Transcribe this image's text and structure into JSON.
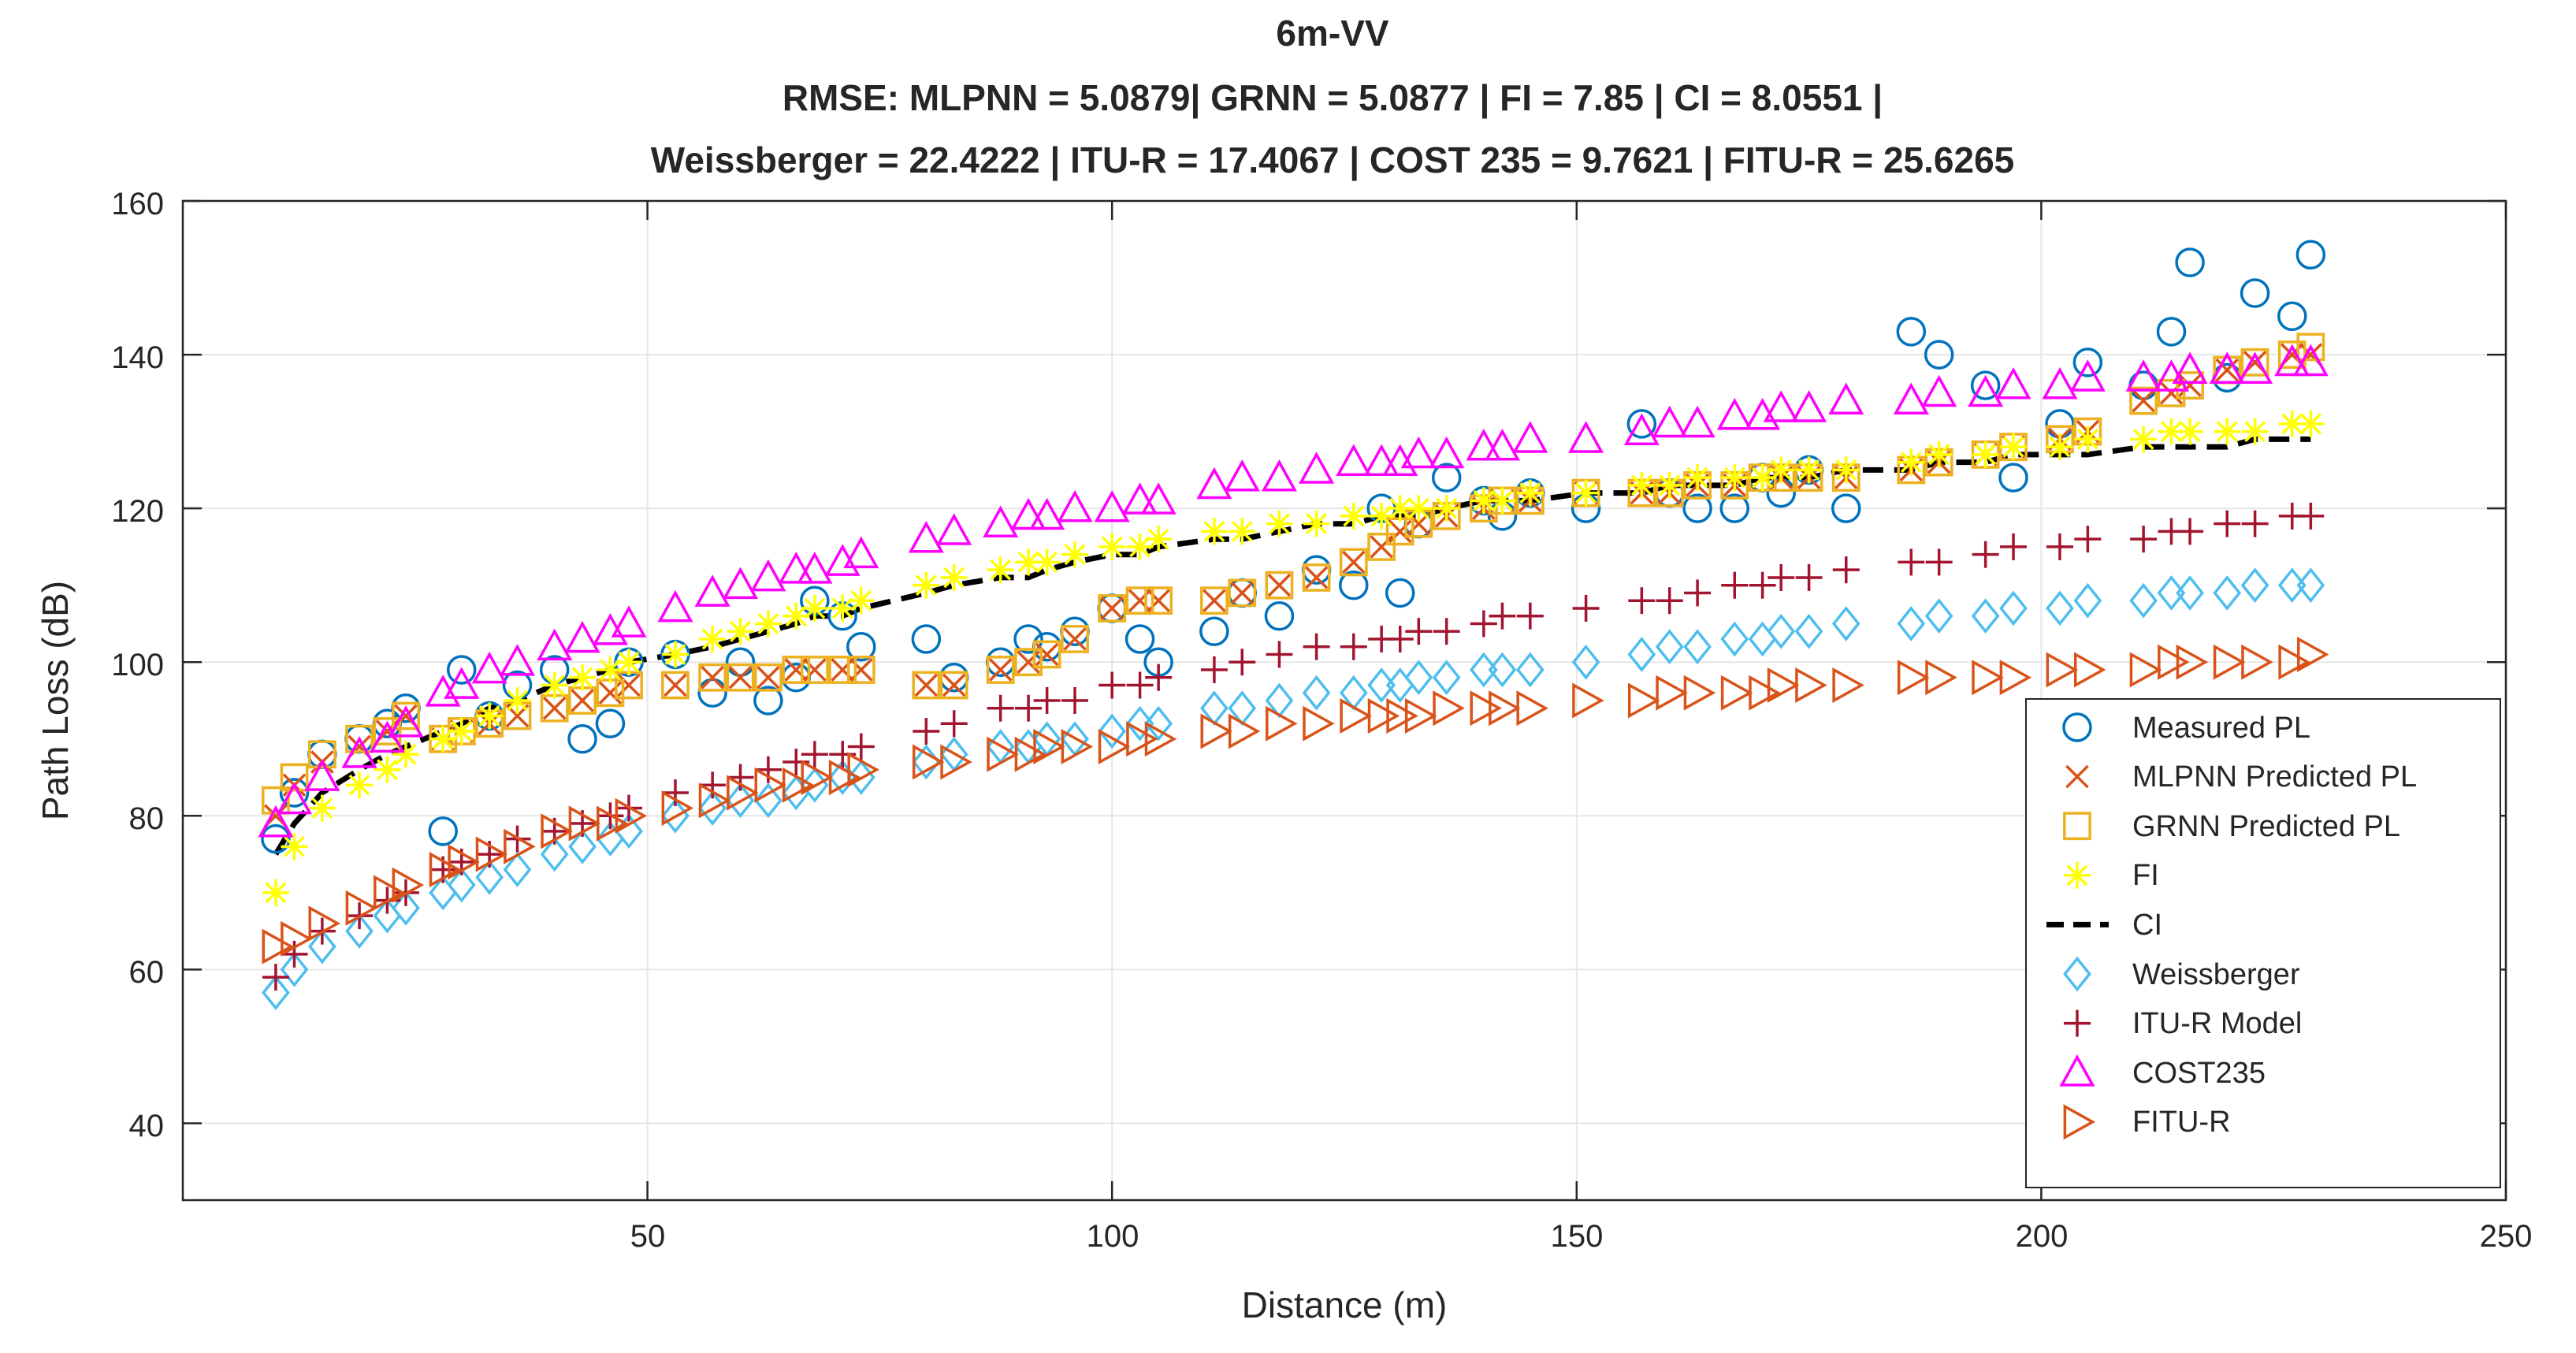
{
  "chart_data": {
    "type": "scatter",
    "title": "6m-VV",
    "subtitle_lines": [
      "RMSE: MLPNN = 5.0879| GRNN = 5.0877 | FI = 7.85 | CI = 8.0551 |",
      "Weissberger = 22.4222 | ITU-R = 17.4067 | COST 235 = 9.7621 | FITU-R = 25.6265"
    ],
    "xlabel": "Distance (m)",
    "ylabel": "Path Loss (dB)",
    "xlim": [
      0,
      250
    ],
    "ylim": [
      30,
      160
    ],
    "xticks": [
      "50",
      "100",
      "150",
      "200",
      "250"
    ],
    "yticks": [
      "40",
      "60",
      "80",
      "100",
      "120",
      "140",
      "160"
    ],
    "grid": true,
    "legend_position": "bottom-right",
    "x": [
      10,
      12,
      15,
      19,
      22,
      24,
      28,
      30,
      33,
      36,
      40,
      43,
      46,
      48,
      53,
      57,
      60,
      63,
      66,
      68,
      71,
      73,
      80,
      83,
      88,
      91,
      93,
      96,
      100,
      103,
      105,
      111,
      114,
      118,
      122,
      126,
      129,
      131,
      133,
      136,
      140,
      142,
      145,
      151,
      157,
      160,
      163,
      167,
      170,
      172,
      175,
      179,
      186,
      189,
      194,
      197,
      202,
      205,
      211,
      214,
      216,
      220,
      223,
      227,
      229
    ],
    "series": [
      {
        "name": "Measured PL",
        "marker": "circle",
        "color": "#0072BD",
        "values": [
          77,
          83,
          88,
          90,
          92,
          94,
          78,
          99,
          93,
          97,
          99,
          90,
          92,
          100,
          101,
          96,
          100,
          95,
          98,
          108,
          106,
          102,
          103,
          98,
          100,
          103,
          102,
          104,
          107,
          103,
          100,
          104,
          109,
          106,
          112,
          110,
          120,
          109,
          118,
          124,
          121,
          119,
          122,
          120,
          131,
          122,
          120,
          120,
          124,
          122,
          125,
          120,
          143,
          140,
          136,
          124,
          131,
          139,
          136,
          143,
          152,
          137,
          148,
          145,
          153
        ]
      },
      {
        "name": "MLPNN Predicted PL",
        "marker": "x",
        "color": "#D95319",
        "values": [
          80,
          84,
          87,
          89,
          91,
          93,
          90,
          91,
          92,
          93,
          94,
          95,
          96,
          97,
          97,
          98,
          98,
          98,
          99,
          99,
          99,
          99,
          97,
          97,
          99,
          100,
          101,
          103,
          107,
          108,
          108,
          108,
          109,
          110,
          111,
          113,
          115,
          117,
          118,
          119,
          120,
          121,
          121,
          122,
          122,
          122,
          123,
          123,
          124,
          124,
          124,
          124,
          125,
          126,
          127,
          128,
          129,
          130,
          134,
          135,
          136,
          138,
          139,
          140,
          140
        ]
      },
      {
        "name": "GRNN Predicted PL",
        "marker": "square",
        "color": "#EDB120",
        "values": [
          82,
          85,
          88,
          90,
          91,
          93,
          90,
          91,
          92,
          93,
          94,
          95,
          96,
          97,
          97,
          98,
          98,
          98,
          99,
          99,
          99,
          99,
          97,
          97,
          99,
          100,
          101,
          103,
          107,
          108,
          108,
          108,
          109,
          110,
          111,
          113,
          115,
          117,
          118,
          119,
          120,
          121,
          121,
          122,
          122,
          122,
          123,
          123,
          124,
          124,
          124,
          124,
          125,
          126,
          127,
          128,
          129,
          130,
          134,
          135,
          136,
          138,
          139,
          140,
          141
        ]
      },
      {
        "name": "FI",
        "marker": "asterisk",
        "color": "#FFFF00",
        "values": [
          70,
          76,
          81,
          84,
          86,
          88,
          90,
          91,
          93,
          95,
          97,
          98,
          99,
          100,
          101,
          103,
          104,
          105,
          106,
          107,
          107,
          108,
          110,
          111,
          112,
          113,
          113,
          114,
          115,
          115,
          116,
          117,
          117,
          118,
          118,
          119,
          119,
          120,
          120,
          120,
          121,
          121,
          122,
          122,
          123,
          123,
          124,
          124,
          124,
          125,
          125,
          125,
          126,
          127,
          127,
          128,
          128,
          129,
          129,
          130,
          130,
          130,
          130,
          131,
          131
        ]
      },
      {
        "name": "CI",
        "marker": "dashed-line",
        "color": "#000000",
        "values": [
          75,
          79,
          83,
          86,
          88,
          89,
          91,
          92,
          94,
          95,
          97,
          98,
          99,
          100,
          101,
          102,
          103,
          104,
          105,
          106,
          106,
          107,
          109,
          110,
          111,
          111,
          112,
          113,
          114,
          114,
          115,
          116,
          116,
          117,
          118,
          118,
          119,
          119,
          119,
          120,
          121,
          121,
          121,
          122,
          122,
          123,
          123,
          123,
          124,
          124,
          124,
          125,
          125,
          126,
          126,
          127,
          127,
          127,
          128,
          128,
          128,
          128,
          129,
          129,
          129
        ]
      },
      {
        "name": "Weissberger",
        "marker": "diamond",
        "color": "#4DBEEE",
        "values": [
          57,
          60,
          63,
          65,
          67,
          68,
          70,
          71,
          72,
          73,
          75,
          76,
          77,
          78,
          80,
          81,
          82,
          82,
          83,
          84,
          85,
          85,
          87,
          88,
          89,
          89,
          90,
          90,
          91,
          92,
          92,
          94,
          94,
          95,
          96,
          96,
          97,
          97,
          98,
          98,
          99,
          99,
          99,
          100,
          101,
          102,
          102,
          103,
          103,
          104,
          104,
          105,
          105,
          106,
          106,
          107,
          107,
          108,
          108,
          109,
          109,
          109,
          110,
          110,
          110
        ]
      },
      {
        "name": "ITU-R Model",
        "marker": "plus",
        "color": "#A2142F",
        "values": [
          59,
          62,
          65,
          67,
          69,
          70,
          73,
          74,
          75,
          77,
          78,
          79,
          80,
          81,
          83,
          84,
          85,
          86,
          87,
          88,
          88,
          89,
          91,
          92,
          94,
          94,
          95,
          95,
          97,
          97,
          98,
          99,
          100,
          101,
          102,
          102,
          103,
          103,
          104,
          104,
          105,
          106,
          106,
          107,
          108,
          108,
          109,
          110,
          110,
          111,
          111,
          112,
          113,
          113,
          114,
          115,
          115,
          116,
          116,
          117,
          117,
          118,
          118,
          119,
          119
        ]
      },
      {
        "name": "COST235",
        "marker": "triangle-up",
        "color": "#FF00FF",
        "values": [
          79,
          82,
          85,
          88,
          90,
          92,
          96,
          97,
          99,
          100,
          102,
          103,
          104,
          105,
          107,
          109,
          110,
          111,
          112,
          112,
          113,
          114,
          116,
          117,
          118,
          119,
          119,
          120,
          120,
          121,
          121,
          123,
          124,
          124,
          125,
          126,
          126,
          126,
          127,
          127,
          128,
          128,
          129,
          129,
          130,
          131,
          131,
          132,
          132,
          133,
          133,
          134,
          134,
          135,
          135,
          136,
          136,
          137,
          137,
          137,
          138,
          138,
          138,
          139,
          139
        ]
      },
      {
        "name": "FITU-R",
        "marker": "triangle-right",
        "color": "#D95319",
        "values": [
          63,
          64,
          66,
          68,
          70,
          71,
          73,
          74,
          75,
          76,
          78,
          79,
          79,
          80,
          81,
          82,
          83,
          84,
          84,
          85,
          85,
          86,
          87,
          87,
          88,
          88,
          89,
          89,
          89,
          90,
          90,
          91,
          91,
          92,
          92,
          93,
          93,
          93,
          93,
          94,
          94,
          94,
          94,
          95,
          95,
          96,
          96,
          96,
          96,
          97,
          97,
          97,
          98,
          98,
          98,
          98,
          99,
          99,
          99,
          100,
          100,
          100,
          100,
          100,
          101
        ]
      }
    ]
  }
}
